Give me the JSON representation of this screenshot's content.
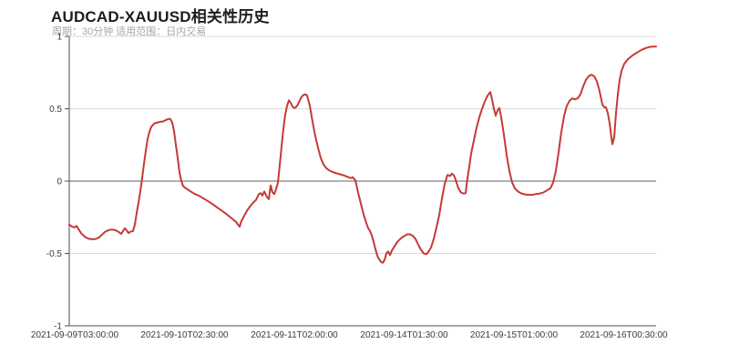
{
  "header": {
    "title": "AUDCAD-XAUUSD相关性历史",
    "subtitle": "周期：30分钟 适用范围：日内交易"
  },
  "colors": {
    "line": "#c43a38",
    "grid_light": "#d9d9d9",
    "zero_line": "#616161",
    "axis": "#4d4d4d",
    "tick_label": "#3c3c3c",
    "title": "#1d1d1d",
    "subtitle": "#a6a6a6",
    "background": "#ffffff"
  },
  "chart_data": {
    "type": "line",
    "title": "AUDCAD-XAUUSD相关性历史",
    "subtitle": "周期：30分钟 适用范围：日内交易",
    "xlabel": "",
    "ylabel": "",
    "ylim": [
      -1,
      1
    ],
    "grid": true,
    "legend": "none",
    "yticks": [
      {
        "value": 1,
        "label": "1"
      },
      {
        "value": 0.5,
        "label": "0.5"
      },
      {
        "value": 0,
        "label": "0"
      },
      {
        "value": -0.5,
        "label": "-0.5"
      },
      {
        "value": -1,
        "label": "-1"
      }
    ],
    "xticks": [
      {
        "pos": 0.0093,
        "label": "2021-09-09T03:00:00"
      },
      {
        "pos": 0.1964,
        "label": "2021-09-10T02:30:00"
      },
      {
        "pos": 0.3835,
        "label": "2021-09-11T02:00:00"
      },
      {
        "pos": 0.5707,
        "label": "2021-09-14T01:30:00"
      },
      {
        "pos": 0.7578,
        "label": "2021-09-15T01:00:00"
      },
      {
        "pos": 0.9449,
        "label": "2021-09-16T00:30:00"
      }
    ],
    "points": [
      [
        0.0,
        -0.3
      ],
      [
        0.0047,
        -0.315
      ],
      [
        0.0093,
        -0.32
      ],
      [
        0.0124,
        -0.31
      ],
      [
        0.0155,
        -0.33
      ],
      [
        0.0202,
        -0.36
      ],
      [
        0.0264,
        -0.385
      ],
      [
        0.0326,
        -0.398
      ],
      [
        0.0388,
        -0.402
      ],
      [
        0.045,
        -0.4
      ],
      [
        0.0512,
        -0.388
      ],
      [
        0.0559,
        -0.37
      ],
      [
        0.0606,
        -0.352
      ],
      [
        0.0652,
        -0.342
      ],
      [
        0.0699,
        -0.336
      ],
      [
        0.0745,
        -0.336
      ],
      [
        0.0792,
        -0.34
      ],
      [
        0.0839,
        -0.35
      ],
      [
        0.0885,
        -0.365
      ],
      [
        0.0916,
        -0.345
      ],
      [
        0.0947,
        -0.326
      ],
      [
        0.0978,
        -0.34
      ],
      [
        0.1009,
        -0.36
      ],
      [
        0.104,
        -0.35
      ],
      [
        0.1087,
        -0.345
      ],
      [
        0.1118,
        -0.3
      ],
      [
        0.1149,
        -0.22
      ],
      [
        0.118,
        -0.15
      ],
      [
        0.1211,
        -0.07
      ],
      [
        0.1242,
        0.02
      ],
      [
        0.1273,
        0.12
      ],
      [
        0.1304,
        0.21
      ],
      [
        0.1335,
        0.29
      ],
      [
        0.1366,
        0.34
      ],
      [
        0.1398,
        0.375
      ],
      [
        0.1429,
        0.39
      ],
      [
        0.146,
        0.4
      ],
      [
        0.1506,
        0.405
      ],
      [
        0.1553,
        0.41
      ],
      [
        0.1599,
        0.412
      ],
      [
        0.1646,
        0.422
      ],
      [
        0.1693,
        0.43
      ],
      [
        0.1724,
        0.428
      ],
      [
        0.1755,
        0.405
      ],
      [
        0.1786,
        0.345
      ],
      [
        0.1817,
        0.25
      ],
      [
        0.1848,
        0.16
      ],
      [
        0.1879,
        0.06
      ],
      [
        0.191,
        0.0
      ],
      [
        0.1941,
        -0.035
      ],
      [
        0.1988,
        -0.05
      ],
      [
        0.2034,
        -0.062
      ],
      [
        0.2081,
        -0.075
      ],
      [
        0.2143,
        -0.09
      ],
      [
        0.2205,
        -0.1
      ],
      [
        0.2267,
        -0.115
      ],
      [
        0.2329,
        -0.13
      ],
      [
        0.2391,
        -0.146
      ],
      [
        0.2469,
        -0.167
      ],
      [
        0.2547,
        -0.19
      ],
      [
        0.2609,
        -0.207
      ],
      [
        0.2671,
        -0.225
      ],
      [
        0.2733,
        -0.246
      ],
      [
        0.2795,
        -0.266
      ],
      [
        0.2842,
        -0.282
      ],
      [
        0.2873,
        -0.3
      ],
      [
        0.2904,
        -0.315
      ],
      [
        0.2935,
        -0.275
      ],
      [
        0.2981,
        -0.24
      ],
      [
        0.3028,
        -0.205
      ],
      [
        0.3075,
        -0.178
      ],
      [
        0.3137,
        -0.148
      ],
      [
        0.3183,
        -0.13
      ],
      [
        0.323,
        -0.09
      ],
      [
        0.3261,
        -0.083
      ],
      [
        0.3292,
        -0.1
      ],
      [
        0.3323,
        -0.072
      ],
      [
        0.3369,
        -0.11
      ],
      [
        0.3401,
        -0.125
      ],
      [
        0.3432,
        -0.03
      ],
      [
        0.3463,
        -0.078
      ],
      [
        0.3494,
        -0.09
      ],
      [
        0.3525,
        -0.055
      ],
      [
        0.3556,
        -0.01
      ],
      [
        0.3587,
        0.11
      ],
      [
        0.3618,
        0.24
      ],
      [
        0.3649,
        0.36
      ],
      [
        0.368,
        0.46
      ],
      [
        0.3711,
        0.52
      ],
      [
        0.3742,
        0.558
      ],
      [
        0.3773,
        0.54
      ],
      [
        0.3804,
        0.515
      ],
      [
        0.3835,
        0.505
      ],
      [
        0.3866,
        0.512
      ],
      [
        0.3898,
        0.53
      ],
      [
        0.3929,
        0.558
      ],
      [
        0.396,
        0.583
      ],
      [
        0.3991,
        0.595
      ],
      [
        0.4022,
        0.6
      ],
      [
        0.4053,
        0.592
      ],
      [
        0.4099,
        0.52
      ],
      [
        0.4146,
        0.41
      ],
      [
        0.4193,
        0.31
      ],
      [
        0.4239,
        0.23
      ],
      [
        0.4286,
        0.16
      ],
      [
        0.4332,
        0.115
      ],
      [
        0.4379,
        0.09
      ],
      [
        0.4425,
        0.075
      ],
      [
        0.4487,
        0.063
      ],
      [
        0.4549,
        0.055
      ],
      [
        0.4612,
        0.047
      ],
      [
        0.4674,
        0.04
      ],
      [
        0.4736,
        0.03
      ],
      [
        0.4798,
        0.02
      ],
      [
        0.4829,
        0.027
      ],
      [
        0.4876,
        0.005
      ],
      [
        0.4922,
        -0.08
      ],
      [
        0.4969,
        -0.155
      ],
      [
        0.5016,
        -0.23
      ],
      [
        0.5062,
        -0.29
      ],
      [
        0.5093,
        -0.325
      ],
      [
        0.5124,
        -0.345
      ],
      [
        0.5155,
        -0.375
      ],
      [
        0.5186,
        -0.42
      ],
      [
        0.5217,
        -0.47
      ],
      [
        0.5248,
        -0.515
      ],
      [
        0.5279,
        -0.54
      ],
      [
        0.5311,
        -0.558
      ],
      [
        0.5342,
        -0.565
      ],
      [
        0.5373,
        -0.545
      ],
      [
        0.5404,
        -0.5
      ],
      [
        0.5435,
        -0.487
      ],
      [
        0.5466,
        -0.512
      ],
      [
        0.5497,
        -0.48
      ],
      [
        0.5543,
        -0.45
      ],
      [
        0.559,
        -0.42
      ],
      [
        0.5652,
        -0.395
      ],
      [
        0.5714,
        -0.378
      ],
      [
        0.5761,
        -0.368
      ],
      [
        0.5807,
        -0.368
      ],
      [
        0.5854,
        -0.378
      ],
      [
        0.5901,
        -0.4
      ],
      [
        0.5947,
        -0.44
      ],
      [
        0.5994,
        -0.475
      ],
      [
        0.604,
        -0.5
      ],
      [
        0.6087,
        -0.505
      ],
      [
        0.6118,
        -0.49
      ],
      [
        0.6165,
        -0.46
      ],
      [
        0.6211,
        -0.4
      ],
      [
        0.6258,
        -0.32
      ],
      [
        0.6304,
        -0.235
      ],
      [
        0.6351,
        -0.12
      ],
      [
        0.6398,
        -0.02
      ],
      [
        0.6444,
        0.042
      ],
      [
        0.6491,
        0.035
      ],
      [
        0.6522,
        0.052
      ],
      [
        0.6553,
        0.04
      ],
      [
        0.6584,
        0.01
      ],
      [
        0.663,
        -0.05
      ],
      [
        0.6677,
        -0.08
      ],
      [
        0.6724,
        -0.086
      ],
      [
        0.6755,
        -0.083
      ],
      [
        0.6786,
        0.02
      ],
      [
        0.6817,
        0.1
      ],
      [
        0.6848,
        0.19
      ],
      [
        0.6894,
        0.28
      ],
      [
        0.6941,
        0.37
      ],
      [
        0.6988,
        0.44
      ],
      [
        0.7034,
        0.5
      ],
      [
        0.7081,
        0.55
      ],
      [
        0.7127,
        0.59
      ],
      [
        0.7174,
        0.615
      ],
      [
        0.7205,
        0.565
      ],
      [
        0.7236,
        0.5
      ],
      [
        0.7267,
        0.452
      ],
      [
        0.7298,
        0.488
      ],
      [
        0.7329,
        0.505
      ],
      [
        0.736,
        0.44
      ],
      [
        0.7407,
        0.32
      ],
      [
        0.7453,
        0.18
      ],
      [
        0.75,
        0.07
      ],
      [
        0.7547,
        -0.01
      ],
      [
        0.7593,
        -0.05
      ],
      [
        0.764,
        -0.07
      ],
      [
        0.7702,
        -0.085
      ],
      [
        0.7764,
        -0.092
      ],
      [
        0.7826,
        -0.095
      ],
      [
        0.7888,
        -0.095
      ],
      [
        0.795,
        -0.09
      ],
      [
        0.8012,
        -0.086
      ],
      [
        0.8075,
        -0.08
      ],
      [
        0.8137,
        -0.065
      ],
      [
        0.8199,
        -0.05
      ],
      [
        0.8245,
        -0.01
      ],
      [
        0.8292,
        0.07
      ],
      [
        0.8339,
        0.2
      ],
      [
        0.8385,
        0.34
      ],
      [
        0.8432,
        0.45
      ],
      [
        0.8478,
        0.52
      ],
      [
        0.8525,
        0.555
      ],
      [
        0.8571,
        0.572
      ],
      [
        0.8618,
        0.565
      ],
      [
        0.8665,
        0.572
      ],
      [
        0.8711,
        0.6
      ],
      [
        0.8758,
        0.655
      ],
      [
        0.8804,
        0.7
      ],
      [
        0.8851,
        0.725
      ],
      [
        0.8897,
        0.735
      ],
      [
        0.8944,
        0.725
      ],
      [
        0.8991,
        0.69
      ],
      [
        0.9037,
        0.62
      ],
      [
        0.9084,
        0.53
      ],
      [
        0.9115,
        0.51
      ],
      [
        0.9146,
        0.51
      ],
      [
        0.9177,
        0.47
      ],
      [
        0.9208,
        0.4
      ],
      [
        0.9239,
        0.3
      ],
      [
        0.9255,
        0.255
      ],
      [
        0.9286,
        0.3
      ],
      [
        0.9317,
        0.47
      ],
      [
        0.9348,
        0.6
      ],
      [
        0.9379,
        0.7
      ],
      [
        0.941,
        0.76
      ],
      [
        0.9457,
        0.81
      ],
      [
        0.9519,
        0.842
      ],
      [
        0.9596,
        0.868
      ],
      [
        0.9674,
        0.888
      ],
      [
        0.9752,
        0.907
      ],
      [
        0.9829,
        0.92
      ],
      [
        0.9907,
        0.928
      ],
      [
        1.0,
        0.93
      ]
    ]
  }
}
